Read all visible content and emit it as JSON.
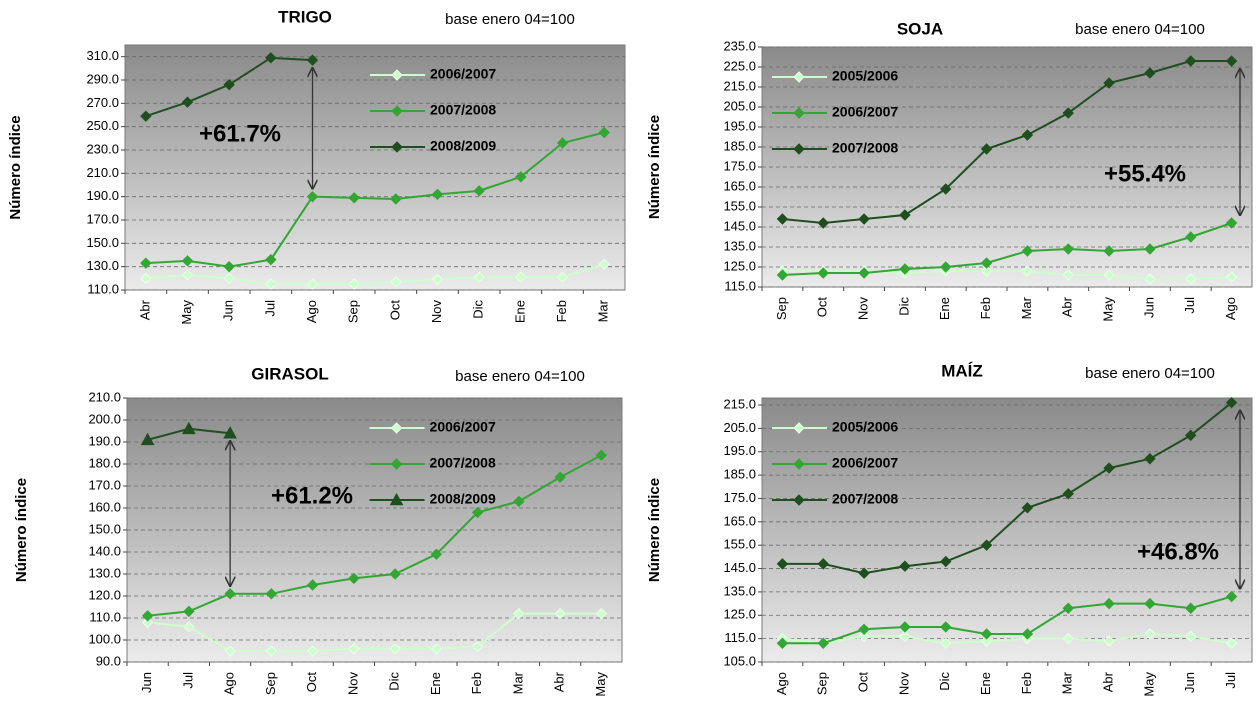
{
  "chart_data": [
    {
      "type": "line",
      "title": "TRIGO",
      "subtitle": "base enero 04=100",
      "y_label": "Número índice",
      "annotation": "+61.7%",
      "grid": true,
      "legend": "upper center",
      "categories": [
        "Abr",
        "May",
        "Jun",
        "Jul",
        "Ago",
        "Sep",
        "Oct",
        "Nov",
        "Dic",
        "Ene",
        "Feb",
        "Mar"
      ],
      "ylim": [
        110,
        320
      ],
      "yticks": [
        {
          "value": 110,
          "label": "110.0"
        },
        {
          "value": 130,
          "label": "130.0"
        },
        {
          "value": 150,
          "label": "150.0"
        },
        {
          "value": 170,
          "label": "170.0"
        },
        {
          "value": 190,
          "label": "190.0"
        },
        {
          "value": 210,
          "label": "210.0"
        },
        {
          "value": 230,
          "label": "230.0"
        },
        {
          "value": 250,
          "label": "250.0"
        },
        {
          "value": 270,
          "label": "270.0"
        },
        {
          "value": 290,
          "label": "290.0"
        },
        {
          "value": 310,
          "label": "310.0"
        }
      ],
      "series": [
        {
          "name": "2006/2007",
          "color": "#ccffcc",
          "marker": "diamond",
          "values": [
            120,
            123,
            120,
            115,
            115,
            115,
            117,
            119,
            121,
            121,
            121,
            132
          ]
        },
        {
          "name": "2007/2008",
          "color": "#33a633",
          "marker": "diamond",
          "values": [
            133,
            135,
            130,
            136,
            190,
            189,
            188,
            192,
            195,
            207,
            236,
            245
          ]
        },
        {
          "name": "2008/2009",
          "color": "#1f4f1f",
          "marker": "diamond",
          "values": [
            259,
            271,
            286,
            309,
            307,
            null,
            null,
            null,
            null,
            null,
            null,
            null
          ]
        }
      ]
    },
    {
      "type": "line",
      "title": "SOJA",
      "subtitle": "base enero 04=100",
      "y_label": "Número índice",
      "annotation": "+55.4%",
      "grid": true,
      "legend": "upper left",
      "categories": [
        "Sep",
        "Oct",
        "Nov",
        "Dic",
        "Ene",
        "Feb",
        "Mar",
        "Abr",
        "May",
        "Jun",
        "Jul",
        "Ago"
      ],
      "ylim": [
        115,
        235
      ],
      "yticks": [
        {
          "value": 115,
          "label": "115.0"
        },
        {
          "value": 125,
          "label": "125.0"
        },
        {
          "value": 135,
          "label": "135.0"
        },
        {
          "value": 145,
          "label": "145.0"
        },
        {
          "value": 155,
          "label": "155.0"
        },
        {
          "value": 165,
          "label": "165.0"
        },
        {
          "value": 175,
          "label": "175.0"
        },
        {
          "value": 185,
          "label": "185.0"
        },
        {
          "value": 195,
          "label": "195.0"
        },
        {
          "value": 205,
          "label": "205.0"
        },
        {
          "value": 215,
          "label": "215.0"
        },
        {
          "value": 225,
          "label": "225.0"
        },
        {
          "value": 235,
          "label": "235.0"
        }
      ],
      "series": [
        {
          "name": "2005/2006",
          "color": "#ccffcc",
          "marker": "diamond",
          "values": [
            123,
            123,
            123,
            122,
            123,
            123,
            123,
            121,
            121,
            119,
            119,
            120
          ]
        },
        {
          "name": "2006/2007",
          "color": "#33a633",
          "marker": "diamond",
          "values": [
            121,
            122,
            122,
            124,
            125,
            127,
            133,
            134,
            133,
            134,
            140,
            147
          ]
        },
        {
          "name": "2007/2008",
          "color": "#1f4f1f",
          "marker": "diamond",
          "values": [
            149,
            147,
            149,
            151,
            164,
            184,
            191,
            202,
            217,
            222,
            228,
            228
          ]
        }
      ]
    },
    {
      "type": "line",
      "title": "GIRASOL",
      "subtitle": "base enero 04=100",
      "y_label": "Número índice",
      "annotation": "+61.2%",
      "grid": true,
      "legend": "upper center",
      "categories": [
        "Jun",
        "Jul",
        "Ago",
        "Sep",
        "Oct",
        "Nov",
        "Dic",
        "Ene",
        "Feb",
        "Mar",
        "Abr",
        "May"
      ],
      "ylim": [
        90,
        210
      ],
      "yticks": [
        {
          "value": 90,
          "label": "90.0"
        },
        {
          "value": 100,
          "label": "100.0"
        },
        {
          "value": 110,
          "label": "110.0"
        },
        {
          "value": 120,
          "label": "120.0"
        },
        {
          "value": 130,
          "label": "130.0"
        },
        {
          "value": 140,
          "label": "140.0"
        },
        {
          "value": 150,
          "label": "150.0"
        },
        {
          "value": 160,
          "label": "160.0"
        },
        {
          "value": 170,
          "label": "170.0"
        },
        {
          "value": 180,
          "label": "180.0"
        },
        {
          "value": 190,
          "label": "190.0"
        },
        {
          "value": 200,
          "label": "200.0"
        },
        {
          "value": 210,
          "label": "210.0"
        }
      ],
      "series": [
        {
          "name": "2006/2007",
          "color": "#ccffcc",
          "marker": "diamond",
          "values": [
            108,
            106,
            95,
            95,
            95,
            96,
            96,
            96,
            97,
            112,
            112,
            112
          ]
        },
        {
          "name": "2007/2008",
          "color": "#33a633",
          "marker": "diamond",
          "values": [
            111,
            113,
            121,
            121,
            125,
            128,
            130,
            139,
            158,
            163,
            174,
            184
          ]
        },
        {
          "name": "2008/2009",
          "color": "#1f4f1f",
          "marker": "triangle",
          "values": [
            191,
            196,
            194,
            null,
            null,
            null,
            null,
            null,
            null,
            null,
            null,
            null
          ]
        }
      ]
    },
    {
      "type": "line",
      "title": "MAÍZ",
      "subtitle": "base enero 04=100",
      "y_label": "Número índice",
      "annotation": "+46.8%",
      "grid": true,
      "legend": "upper left",
      "categories": [
        "Ago",
        "Sep",
        "Oct",
        "Nov",
        "Dic",
        "Ene",
        "Feb",
        "Mar",
        "Abr",
        "May",
        "Jun",
        "Jul"
      ],
      "ylim": [
        105,
        218
      ],
      "yticks": [
        {
          "value": 105,
          "label": "105.0"
        },
        {
          "value": 115,
          "label": "115.0"
        },
        {
          "value": 125,
          "label": "125.0"
        },
        {
          "value": 135,
          "label": "135.0"
        },
        {
          "value": 145,
          "label": "145.0"
        },
        {
          "value": 155,
          "label": "155.0"
        },
        {
          "value": 165,
          "label": "165.0"
        },
        {
          "value": 175,
          "label": "175.0"
        },
        {
          "value": 185,
          "label": "185.0"
        },
        {
          "value": 195,
          "label": "195.0"
        },
        {
          "value": 205,
          "label": "205.0"
        },
        {
          "value": 215,
          "label": "215.0"
        }
      ],
      "series": [
        {
          "name": "2005/2006",
          "color": "#ccffcc",
          "marker": "diamond",
          "values": [
            115,
            113,
            116,
            116,
            113,
            114,
            115,
            115,
            114,
            117,
            116,
            113
          ]
        },
        {
          "name": "2006/2007",
          "color": "#33a633",
          "marker": "diamond",
          "values": [
            113,
            113,
            119,
            120,
            120,
            117,
            117,
            128,
            130,
            130,
            128,
            133
          ]
        },
        {
          "name": "2007/2008",
          "color": "#1f4f1f",
          "marker": "diamond",
          "values": [
            147,
            147,
            143,
            146,
            148,
            155,
            171,
            177,
            188,
            192,
            202,
            216
          ]
        }
      ]
    }
  ]
}
